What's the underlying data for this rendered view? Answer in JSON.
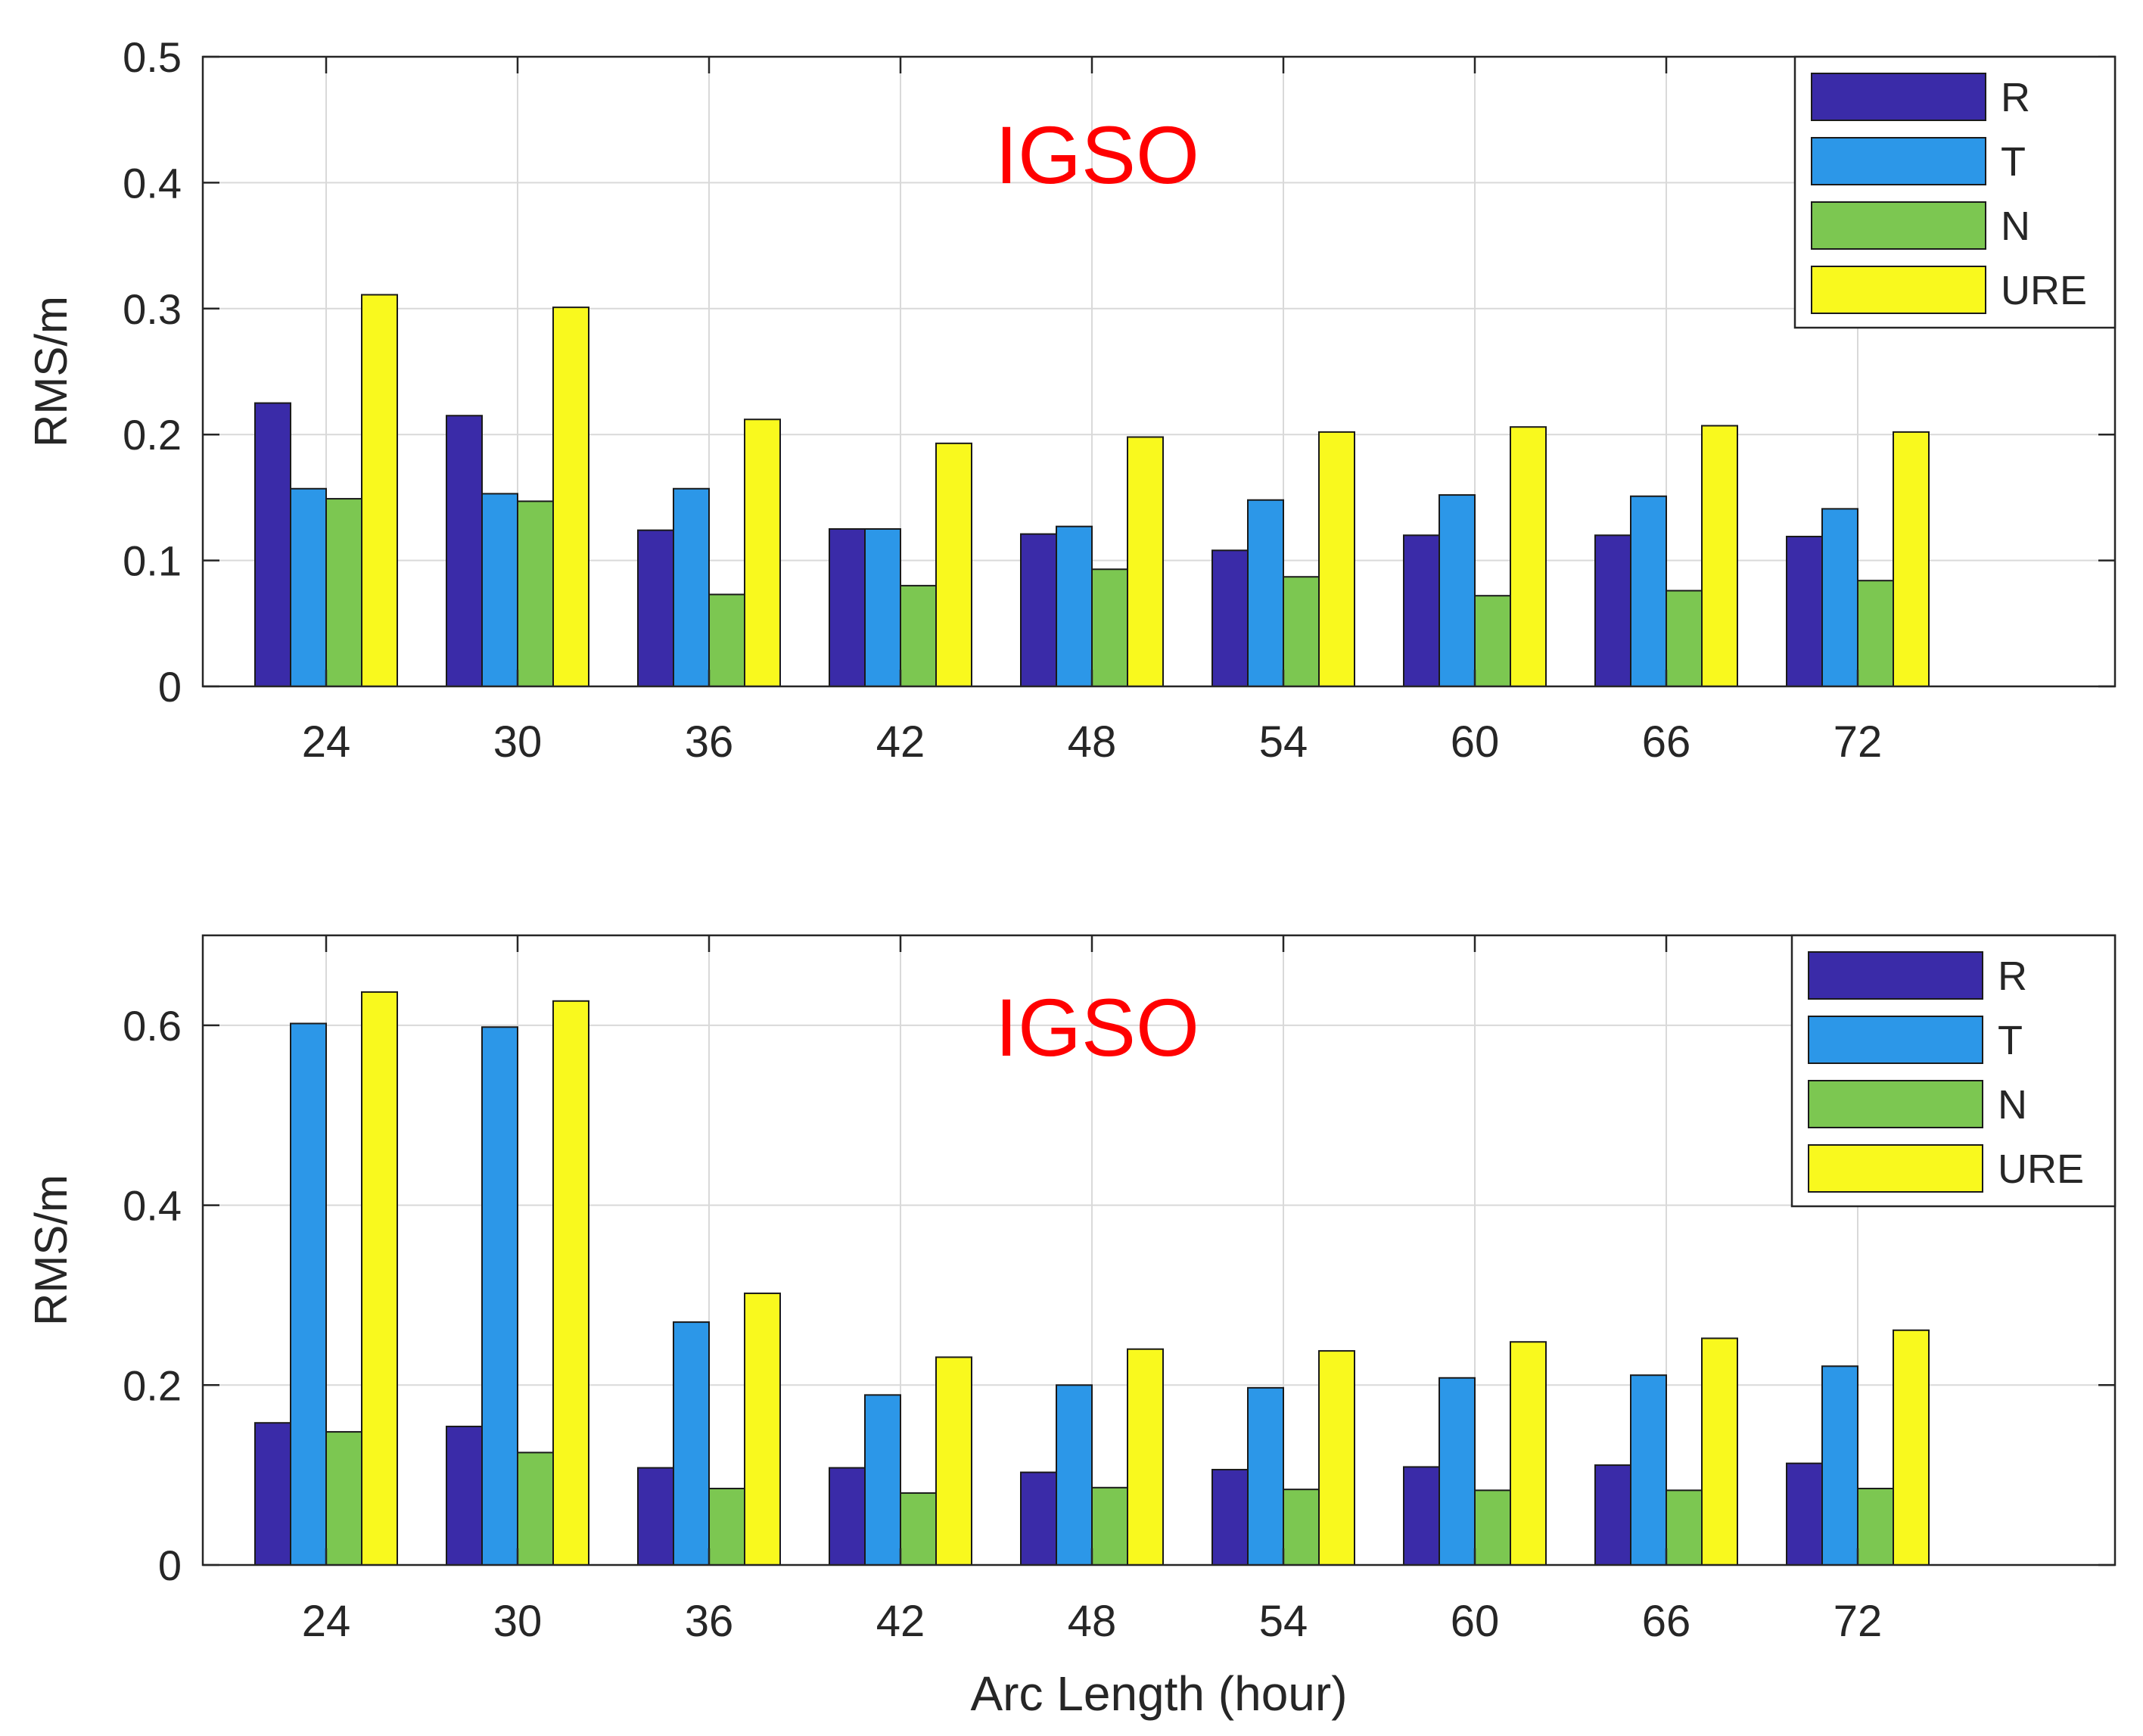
{
  "chart_data": [
    {
      "type": "bar",
      "title": "IGSO",
      "xlabel": "",
      "ylabel": "RMS/m",
      "categories": [
        "24",
        "30",
        "36",
        "42",
        "48",
        "54",
        "60",
        "66",
        "72"
      ],
      "ylim": [
        0,
        0.5
      ],
      "yticks": [
        "0",
        "0.1",
        "0.2",
        "0.3",
        "0.4",
        "0.5"
      ],
      "grid": true,
      "legend_position": "top-right",
      "series": [
        {
          "name": "R",
          "color": "#3a2ba8",
          "values": [
            0.225,
            0.215,
            0.124,
            0.125,
            0.121,
            0.108,
            0.12,
            0.12,
            0.119
          ]
        },
        {
          "name": "T",
          "color": "#2c97e8",
          "values": [
            0.157,
            0.153,
            0.157,
            0.125,
            0.127,
            0.148,
            0.152,
            0.151,
            0.141
          ]
        },
        {
          "name": "N",
          "color": "#7cc751",
          "values": [
            0.149,
            0.147,
            0.073,
            0.08,
            0.093,
            0.087,
            0.072,
            0.076,
            0.084
          ]
        },
        {
          "name": "URE",
          "color": "#f9f91e",
          "values": [
            0.311,
            0.301,
            0.212,
            0.193,
            0.198,
            0.202,
            0.206,
            0.207,
            0.202
          ]
        }
      ]
    },
    {
      "type": "bar",
      "title": "IGSO",
      "xlabel": "Arc Length (hour)",
      "ylabel": "RMS/m",
      "categories": [
        "24",
        "30",
        "36",
        "42",
        "48",
        "54",
        "60",
        "66",
        "72"
      ],
      "ylim": [
        0,
        0.7
      ],
      "yticks": [
        "0",
        "0.2",
        "0.4",
        "0.6"
      ],
      "grid": true,
      "legend_position": "top-right",
      "series": [
        {
          "name": "R",
          "color": "#3a2ba8",
          "values": [
            0.158,
            0.154,
            0.108,
            0.108,
            0.103,
            0.106,
            0.109,
            0.111,
            0.113
          ]
        },
        {
          "name": "T",
          "color": "#2c97e8",
          "values": [
            0.602,
            0.598,
            0.27,
            0.189,
            0.2,
            0.197,
            0.208,
            0.211,
            0.221
          ]
        },
        {
          "name": "N",
          "color": "#7cc751",
          "values": [
            0.148,
            0.125,
            0.085,
            0.08,
            0.086,
            0.084,
            0.083,
            0.083,
            0.085
          ]
        },
        {
          "name": "URE",
          "color": "#f9f91e",
          "values": [
            0.637,
            0.627,
            0.302,
            0.231,
            0.24,
            0.238,
            0.248,
            0.252,
            0.261
          ]
        }
      ]
    }
  ]
}
